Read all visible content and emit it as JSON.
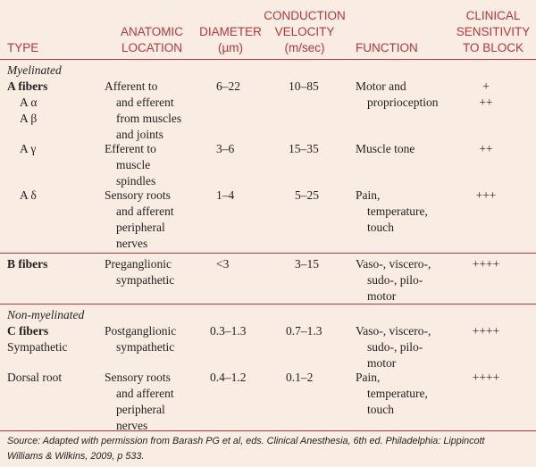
{
  "header": {
    "type": "TYPE",
    "location": [
      "ANATOMIC",
      "LOCATION"
    ],
    "diameter": [
      "DIAMETER",
      "(µm)"
    ],
    "velocity": [
      "CONDUCTION",
      "VELOCITY",
      "(m/sec)"
    ],
    "function": "FUNCTION",
    "sensitivity": [
      "CLINICAL",
      "SENSITIVITY",
      "TO BLOCK"
    ]
  },
  "myelinated": {
    "section_label": "Myelinated",
    "a_fibers": "A fibers",
    "a_alpha": "A α",
    "a_beta": "A β",
    "a_alpha_beta_location": [
      "Afferent to",
      "and efferent",
      "from muscles",
      "and joints"
    ],
    "a_alpha_beta_diameter": "6–22",
    "a_alpha_beta_velocity": "10–85",
    "a_alpha_beta_function": [
      "Motor and",
      "proprioception"
    ],
    "a_alpha_sensitivity": "+",
    "a_beta_sensitivity": "++",
    "a_gamma": "A γ",
    "a_gamma_location": [
      "Efferent to",
      "muscle",
      "spindles"
    ],
    "a_gamma_diameter": "3–6",
    "a_gamma_velocity": "15–35",
    "a_gamma_function": "Muscle tone",
    "a_gamma_sensitivity": "++",
    "a_delta": "A δ",
    "a_delta_location": [
      "Sensory roots",
      "and afferent",
      "peripheral",
      "nerves"
    ],
    "a_delta_diameter": "1–4",
    "a_delta_velocity": "5–25",
    "a_delta_function": [
      "Pain,",
      "temperature,",
      "touch"
    ],
    "a_delta_sensitivity": "+++"
  },
  "b_fibers": {
    "type": "B fibers",
    "location": [
      "Preganglionic",
      "sympathetic"
    ],
    "diameter": "<3",
    "velocity": "3–15",
    "function": [
      "Vaso-, viscero-,",
      "sudo-, pilo-",
      "motor"
    ],
    "sensitivity": "++++"
  },
  "non_myelinated": {
    "section_label": "Non-myelinated",
    "c_fibers": "C fibers",
    "sympathetic": "Sympathetic",
    "sympathetic_location": [
      "Postganglionic",
      "sympathetic"
    ],
    "sympathetic_diameter": "0.3–1.3",
    "sympathetic_velocity": "0.7–1.3",
    "sympathetic_function": [
      "Vaso-, viscero-,",
      "sudo-, pilo-",
      "motor"
    ],
    "sympathetic_sensitivity": "++++",
    "dorsal_root": "Dorsal root",
    "dorsal_root_location": [
      "Sensory roots",
      "and afferent",
      "peripheral",
      "nerves"
    ],
    "dorsal_root_diameter": "0.4–1.2",
    "dorsal_root_velocity": "0.1–2",
    "dorsal_root_function": [
      "Pain,",
      "temperature,",
      "touch"
    ],
    "dorsal_root_sensitivity": "++++"
  },
  "source": [
    "Source: Adapted with permission from Barash PG et al, eds. Clinical Anesthesia, 6th ed. Philadelphia: Lippincott",
    "Williams & Wilkins, 2009, p 533."
  ],
  "colors": {
    "accent": "#b5373a",
    "background": "#f8ece3",
    "text": "#231f20"
  }
}
